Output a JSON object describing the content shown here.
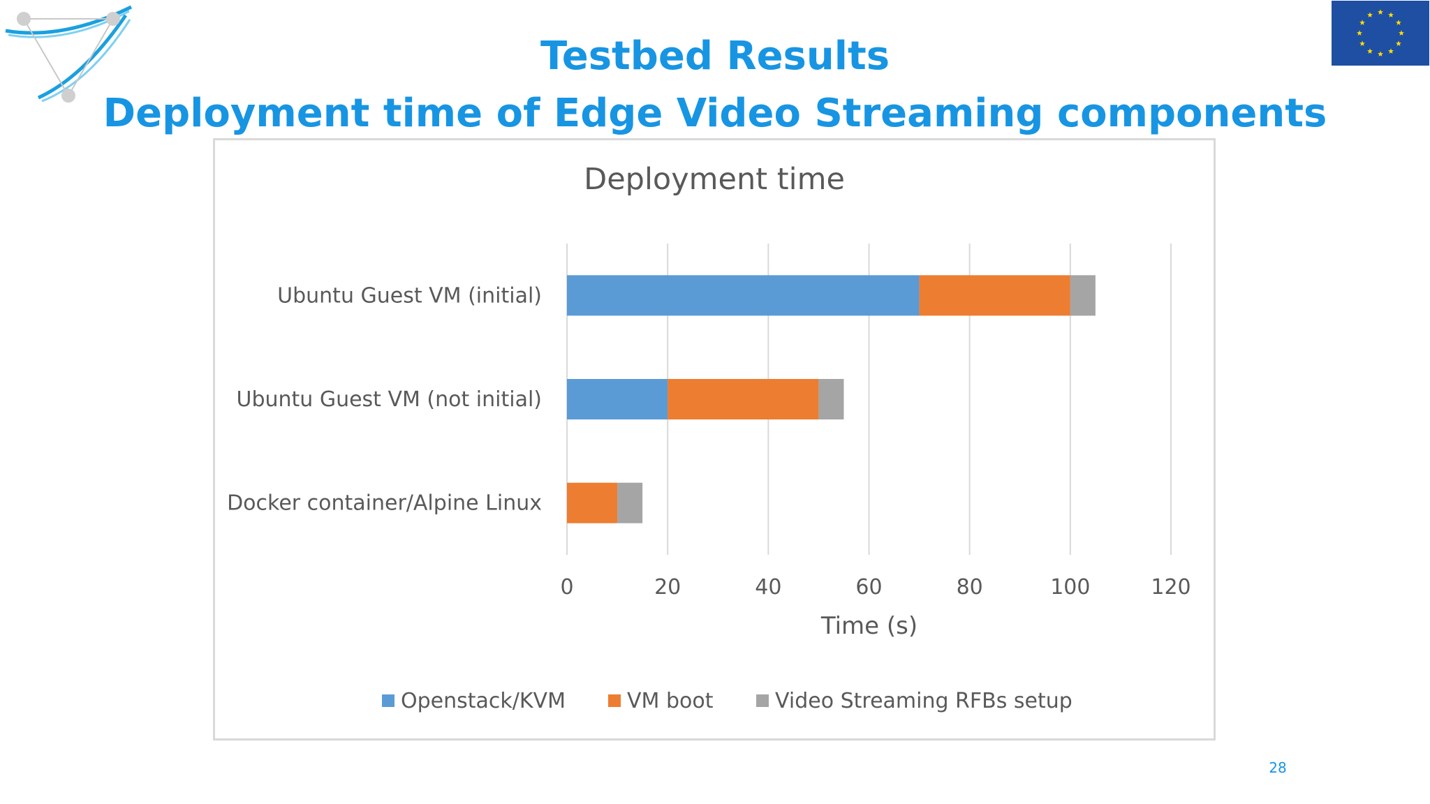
{
  "slide": {
    "title": "Testbed Results",
    "subtitle": "Deployment time of Edge Video Streaming components",
    "page_number": "28"
  },
  "colors": {
    "title": "#1795e3",
    "eu_blue": "#1f4fa3",
    "eu_star": "#ffdd00"
  },
  "chart_data": {
    "type": "bar",
    "orientation": "horizontal",
    "stacked": true,
    "title": "Deployment time",
    "xlabel": "Time (s)",
    "ylabel": "",
    "xlim": [
      0,
      120
    ],
    "xticks": [
      0,
      20,
      40,
      60,
      80,
      100,
      120
    ],
    "grid": true,
    "legend_position": "bottom",
    "categories": [
      "Ubuntu Guest VM (initial)",
      "Ubuntu Guest VM (not initial)",
      "Docker container/Alpine Linux"
    ],
    "series": [
      {
        "name": "Openstack/KVM",
        "color": "#5b9bd5",
        "values": [
          70,
          20,
          0
        ]
      },
      {
        "name": "VM boot",
        "color": "#ed7d31",
        "values": [
          30,
          30,
          10
        ]
      },
      {
        "name": "Video Streaming RFBs setup",
        "color": "#a5a5a5",
        "values": [
          5,
          5,
          5
        ]
      }
    ]
  }
}
